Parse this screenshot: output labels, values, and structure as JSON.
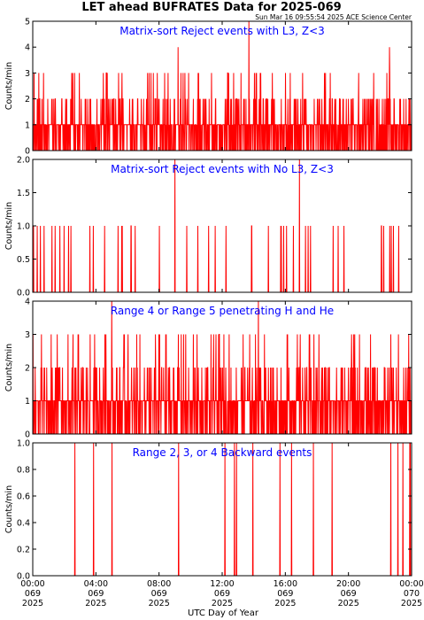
{
  "title": "LET ahead BUFRATES Data for 2025-069",
  "timestamp": "Sun Mar 16 09:55:54 2025 ACE Science Center",
  "xlabel": "UTC Day of Year",
  "x_ticks": [
    {
      "time": "00:00",
      "doy": "069",
      "year": "2025"
    },
    {
      "time": "04:00",
      "doy": "069",
      "year": "2025"
    },
    {
      "time": "08:00",
      "doy": "069",
      "year": "2025"
    },
    {
      "time": "12:00",
      "doy": "069",
      "year": "2025"
    },
    {
      "time": "16:00",
      "doy": "069",
      "year": "2025"
    },
    {
      "time": "20:00",
      "doy": "069",
      "year": "2025"
    },
    {
      "time": "00:00",
      "doy": "070",
      "year": "2025"
    }
  ],
  "colors": {
    "data": "#ff0000",
    "panel_title": "#0000ff",
    "axes": "#000000"
  },
  "chart_data": [
    {
      "type": "line",
      "title": "Matrix-sort Reject events with L3, Z<3",
      "ylabel": "Counts/min",
      "ylim": [
        0,
        5
      ],
      "yticks": [
        "0",
        "1",
        "2",
        "3",
        "4",
        "5"
      ],
      "xlim_hours": [
        0,
        24
      ],
      "series": [
        {
          "values": []
        }
      ],
      "spikes": [
        {
          "hour": 9.2,
          "value": 4
        },
        {
          "hour": 13.7,
          "value": 5
        },
        {
          "hour": 22.6,
          "value": 4
        }
      ]
    },
    {
      "type": "line",
      "title": "Matrix-sort Reject events with No L3, Z<3",
      "ylabel": "Counts/min",
      "ylim": [
        0,
        2
      ],
      "yticks": [
        "0.0",
        "0.5",
        "1.0",
        "1.5",
        "2.0"
      ],
      "xlim_hours": [
        0,
        24
      ],
      "series": [
        {
          "values": []
        }
      ],
      "spikes": [
        {
          "hour": 9.0,
          "value": 2
        },
        {
          "hour": 16.9,
          "value": 2
        }
      ]
    },
    {
      "type": "line",
      "title": "Range 4 or Range 5 penetrating H and He",
      "ylabel": "Counts/min",
      "ylim": [
        0,
        4
      ],
      "yticks": [
        "0",
        "1",
        "2",
        "3",
        "4"
      ],
      "xlim_hours": [
        0,
        24
      ],
      "series": [
        {
          "values": []
        }
      ],
      "spikes": [
        {
          "hour": 5.0,
          "value": 4
        },
        {
          "hour": 14.3,
          "value": 4
        }
      ]
    },
    {
      "type": "line",
      "title": "Range 2, 3, or 4 Backward events",
      "ylabel": "Counts/min",
      "ylim": [
        0,
        1
      ],
      "yticks": [
        "0.0",
        "0.2",
        "0.4",
        "0.6",
        "0.8",
        "1.0"
      ],
      "xlim_hours": [
        0,
        24
      ],
      "series": [
        {
          "values": []
        }
      ],
      "spikes": []
    }
  ]
}
